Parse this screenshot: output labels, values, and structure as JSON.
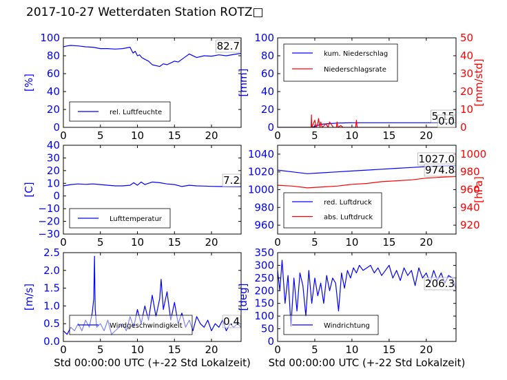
{
  "title": "2017-10-27 Wetterdaten Station ROTZ□",
  "colors": {
    "primary": "#0000ff",
    "secondary": "#ff0000",
    "text": "#000000"
  },
  "chart_data": [
    {
      "id": "humidity",
      "type": "line",
      "ylabel": "[%]",
      "xlabel": "",
      "xlim": [
        0,
        24
      ],
      "ylim": [
        0,
        100
      ],
      "xticks": [
        0,
        5,
        10,
        15,
        20
      ],
      "yticks": [
        0,
        20,
        40,
        60,
        80,
        100
      ],
      "legend": [
        "rel. Luftfeuchte"
      ],
      "legend_position": "lower-left",
      "annotation": "82.7",
      "series": [
        {
          "name": "rel. Luftfeuchte",
          "color": "#0000ff",
          "x": [
            0,
            0.5,
            1,
            2,
            3,
            4,
            5,
            6,
            7,
            8,
            9,
            9.4,
            9.7,
            10,
            10.3,
            10.6,
            11,
            11.5,
            12,
            12.5,
            13,
            13.5,
            14,
            14.5,
            15,
            15.5,
            16,
            16.5,
            17,
            18,
            19,
            20,
            21,
            22,
            23,
            24
          ],
          "y": [
            90,
            91,
            91.5,
            91,
            90,
            89.5,
            88,
            88,
            87.5,
            88,
            89.5,
            83,
            85,
            80,
            81,
            78,
            76,
            74,
            70,
            69,
            68,
            71,
            70,
            72,
            74,
            73,
            76,
            79,
            82,
            78,
            80,
            79.5,
            81,
            80,
            81.5,
            82.7
          ]
        }
      ]
    },
    {
      "id": "precip",
      "type": "line",
      "ylabel": "[mm]",
      "y2label": "[mm/std]",
      "xlabel": "",
      "xlim": [
        0,
        24
      ],
      "ylim": [
        0,
        100
      ],
      "y2lim": [
        0,
        50
      ],
      "xticks": [
        0,
        5,
        10,
        15,
        20
      ],
      "yticks": [
        0,
        20,
        40,
        60,
        80,
        100
      ],
      "y2ticks": [
        0,
        10,
        20,
        30,
        40,
        50
      ],
      "legend": [
        "kum. Niederschlag",
        "Niederschlagsrate"
      ],
      "legend_position": "top-left",
      "annotations": [
        "5.15",
        "0.0"
      ],
      "series": [
        {
          "name": "kum. Niederschlag",
          "color": "#0000ff",
          "axis": "left",
          "x": [
            0,
            4.5,
            5,
            5.5,
            6,
            7,
            8,
            9,
            10,
            24
          ],
          "y": [
            0,
            0,
            1,
            2.5,
            3.5,
            4.2,
            4.8,
            5.0,
            5.15,
            5.15
          ]
        },
        {
          "name": "Niederschlagsrate",
          "color": "#ff0000",
          "axis": "right",
          "x": [
            0,
            4.5,
            4.55,
            4.6,
            4.8,
            5.0,
            5.2,
            5.4,
            5.5,
            5.7,
            5.8,
            6.0,
            6.5,
            6.8,
            7.0,
            7.5,
            7.9,
            8.0,
            8.1,
            8.5,
            8.8,
            10.5,
            10.6,
            10.7,
            24
          ],
          "y": [
            0,
            0,
            7,
            0,
            2,
            4,
            0,
            2,
            5,
            0,
            3,
            0,
            2,
            0,
            3,
            0,
            0,
            3,
            0,
            1,
            0,
            0,
            4,
            0,
            0
          ]
        }
      ]
    },
    {
      "id": "temperature",
      "type": "line",
      "ylabel": "[C]",
      "xlabel": "",
      "xlim": [
        0,
        24
      ],
      "ylim": [
        -30,
        40
      ],
      "xticks": [
        0,
        5,
        10,
        15,
        20
      ],
      "yticks": [
        -30,
        -20,
        -10,
        0,
        10,
        20,
        30,
        40
      ],
      "legend": [
        "Lufttemperatur"
      ],
      "legend_position": "lower-left",
      "annotation": "7.2",
      "series": [
        {
          "name": "Lufttemperatur",
          "color": "#0000ff",
          "x": [
            0,
            1,
            2,
            3,
            4,
            5,
            6,
            7,
            8,
            9,
            9.5,
            10,
            10.5,
            11,
            12,
            13,
            14,
            15,
            16,
            17,
            18,
            19,
            20,
            21,
            22,
            23,
            24
          ],
          "y": [
            8,
            9,
            9.5,
            9.2,
            9.5,
            9,
            8.5,
            8,
            8,
            8.5,
            10.5,
            8.5,
            11,
            9,
            11,
            10.5,
            9.5,
            9,
            7.5,
            8.5,
            8,
            7.8,
            7.6,
            7.5,
            7.4,
            7.3,
            7.2
          ]
        }
      ]
    },
    {
      "id": "pressure",
      "type": "line",
      "ylabel": "",
      "y2label": "[hPa]",
      "xlabel": "",
      "xlim": [
        0,
        24
      ],
      "ylim": [
        950,
        1050
      ],
      "y2lim": [
        910,
        1010
      ],
      "xticks": [
        0,
        5,
        10,
        15,
        20
      ],
      "yticks": [
        960,
        980,
        1000,
        1020,
        1040
      ],
      "y2ticks": [
        920,
        940,
        960,
        980,
        1000
      ],
      "legend": [
        "red. Luftdruck",
        "abs. Luftdruck"
      ],
      "legend_position": "lower-left",
      "annotations": [
        "1027.0",
        "974.8"
      ],
      "series": [
        {
          "name": "red. Luftdruck",
          "color": "#0000ff",
          "axis": "left",
          "x": [
            0,
            2,
            4,
            6,
            8,
            10,
            12,
            14,
            16,
            18,
            20,
            22,
            24
          ],
          "y": [
            1022,
            1020,
            1018,
            1019,
            1020,
            1021,
            1022,
            1023,
            1024,
            1025,
            1026,
            1026.5,
            1027
          ]
        },
        {
          "name": "abs. Luftdruck",
          "color": "#ff0000",
          "axis": "right",
          "x": [
            0,
            2,
            4,
            6,
            8,
            10,
            12,
            14,
            16,
            18,
            20,
            22,
            24
          ],
          "y": [
            965,
            964,
            962,
            963,
            964,
            966,
            967,
            969,
            970,
            971,
            973,
            974,
            974.8
          ]
        }
      ]
    },
    {
      "id": "wind-speed",
      "type": "line",
      "ylabel": "[m/s]",
      "xlabel": "Std 00:00:00 UTC (+-22 Std Lokalzeit)",
      "xlim": [
        0,
        24
      ],
      "ylim": [
        0,
        2.5
      ],
      "xticks": [
        0,
        5,
        10,
        15,
        20
      ],
      "yticks": [
        0.0,
        0.5,
        1.0,
        1.5,
        2.0,
        2.5
      ],
      "legend": [
        "Windgeschwindigkeit"
      ],
      "legend_position": "lower-left",
      "annotation": "0.4",
      "series": [
        {
          "name": "Windgeschwindigkeit",
          "color": "#0000ff",
          "x": [
            0,
            0.5,
            1,
            1.5,
            2,
            2.5,
            3,
            3.5,
            3.9,
            4.1,
            4.2,
            4.3,
            4.5,
            5,
            5.5,
            6,
            6.5,
            7,
            7.5,
            8,
            8.5,
            9,
            9.5,
            10,
            10.5,
            11,
            11.5,
            12,
            12.5,
            13,
            13.2,
            13.5,
            14,
            14.5,
            15,
            15.5,
            16,
            16.5,
            17,
            17.5,
            18,
            18.5,
            19,
            19.5,
            20,
            20.5,
            21,
            21.5,
            22,
            22.5,
            23,
            23.5,
            24
          ],
          "y": [
            0.3,
            0.2,
            0.4,
            0.3,
            0.5,
            0.3,
            0.6,
            0.4,
            0.8,
            1.2,
            2.4,
            0.9,
            0.4,
            0.5,
            0.3,
            0.6,
            0.2,
            0.3,
            0.4,
            0.5,
            0.3,
            0.7,
            0.4,
            0.9,
            0.5,
            1.0,
            0.6,
            1.3,
            0.7,
            1.2,
            1.75,
            0.9,
            1.4,
            0.6,
            1.1,
            0.5,
            0.8,
            0.4,
            0.6,
            0.3,
            0.7,
            0.5,
            0.4,
            0.6,
            0.3,
            0.5,
            0.4,
            0.6,
            0.3,
            0.5,
            0.4,
            0.5,
            0.4
          ]
        }
      ]
    },
    {
      "id": "wind-direction",
      "type": "line",
      "ylabel": "[deg]",
      "xlabel": "Std 00:00:00 UTC (+-22 Std Lokalzeit)",
      "xlim": [
        0,
        24
      ],
      "ylim": [
        0,
        350
      ],
      "xticks": [
        0,
        5,
        10,
        15,
        20
      ],
      "yticks": [
        0,
        50,
        100,
        150,
        200,
        250,
        300,
        350
      ],
      "legend": [
        "Windrichtung"
      ],
      "legend_position": "lower-left",
      "annotation": "206.3",
      "series": [
        {
          "name": "Windrichtung",
          "color": "#0000ff",
          "x": [
            0,
            0.3,
            0.6,
            1,
            1.4,
            1.8,
            2.2,
            2.6,
            3,
            3.4,
            3.8,
            4.2,
            4.6,
            5,
            5.4,
            5.8,
            6.2,
            6.6,
            7,
            7.4,
            7.8,
            8.2,
            8.6,
            9,
            9.4,
            9.8,
            10.2,
            10.6,
            11,
            11.5,
            12,
            12.5,
            13,
            13.5,
            14,
            14.5,
            15,
            15.5,
            16,
            16.5,
            17,
            17.5,
            18,
            18.5,
            19,
            19.5,
            20,
            20.5,
            21,
            21.5,
            22,
            22.5,
            23,
            23.5,
            24
          ],
          "y": [
            280,
            200,
            320,
            150,
            260,
            60,
            250,
            120,
            270,
            220,
            100,
            280,
            150,
            250,
            180,
            230,
            150,
            260,
            200,
            250,
            230,
            120,
            270,
            210,
            280,
            250,
            290,
            270,
            300,
            280,
            290,
            300,
            270,
            290,
            260,
            280,
            300,
            250,
            280,
            240,
            290,
            260,
            280,
            220,
            290,
            250,
            270,
            230,
            280,
            240,
            270,
            230,
            260,
            250,
            206.3
          ]
        }
      ]
    }
  ]
}
